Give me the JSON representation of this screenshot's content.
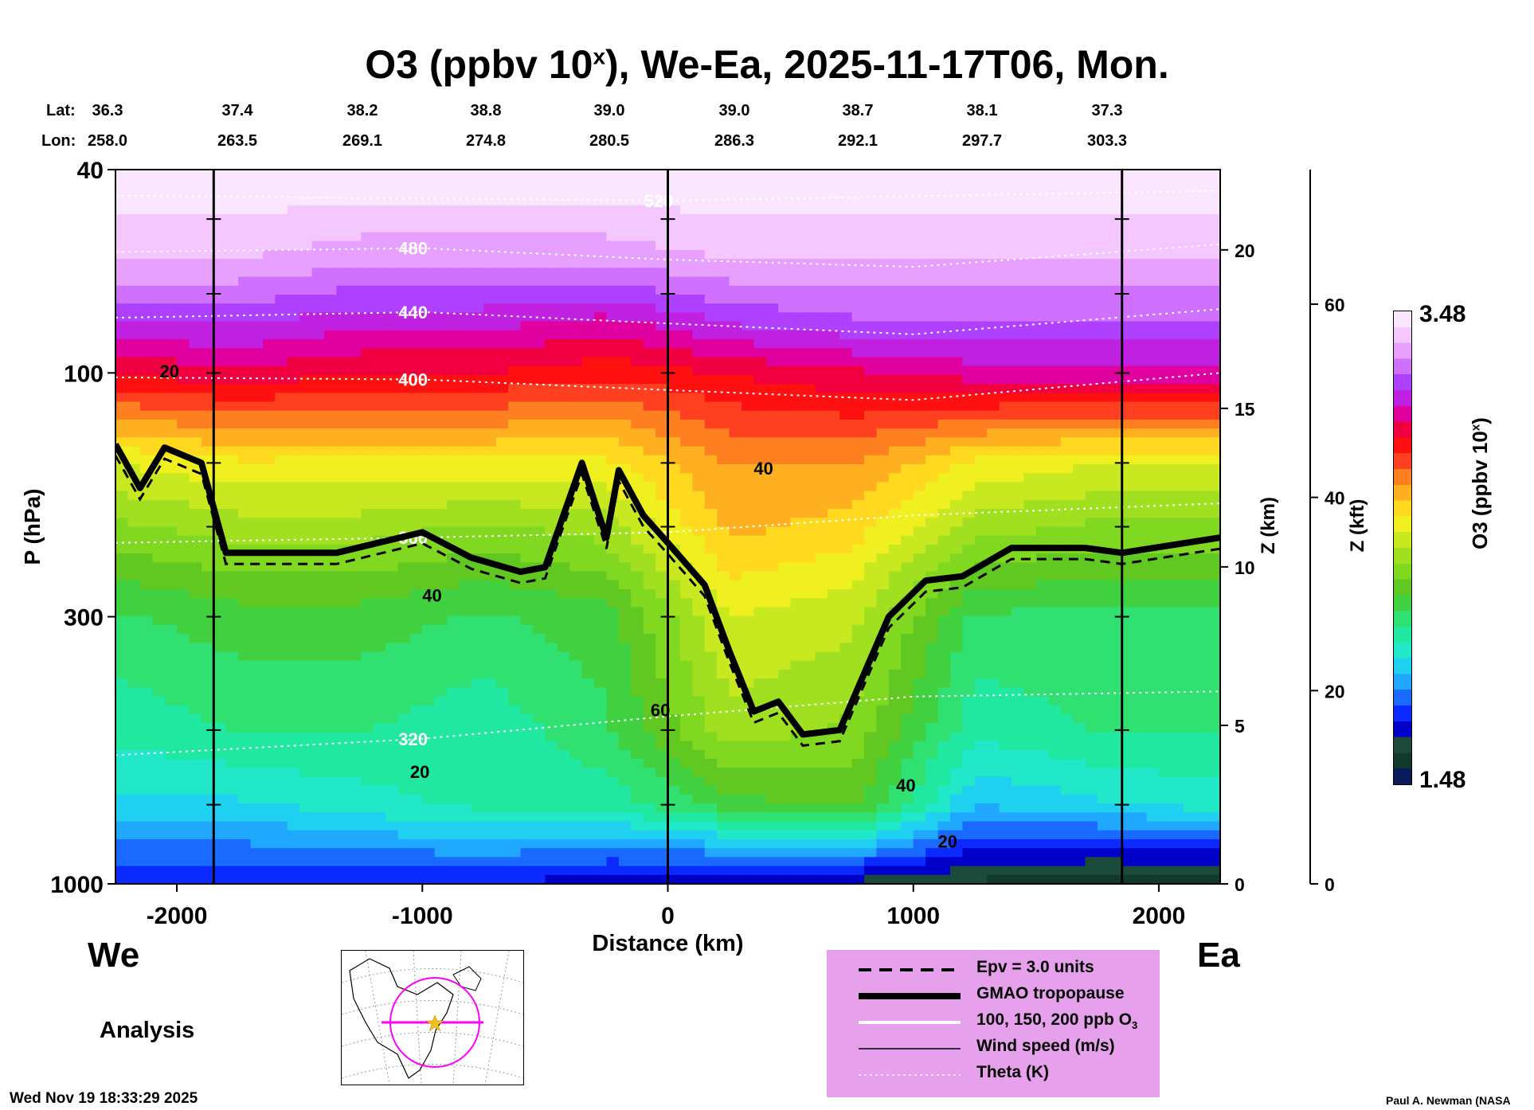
{
  "title": {
    "text": "O3 (ppbv 10",
    "sup": "x",
    "rest": "), We-Ea, 2025-11-17T06, Mon."
  },
  "lat_label": "Lat:",
  "lon_label": "Lon:",
  "lat_values": [
    "36.3",
    "37.4",
    "38.2",
    "38.8",
    "39.0",
    "39.0",
    "38.7",
    "38.1",
    "37.3"
  ],
  "lon_values": [
    "258.0",
    "263.5",
    "269.1",
    "274.8",
    "280.5",
    "286.3",
    "292.1",
    "297.7",
    "303.3"
  ],
  "direction_left": "We",
  "direction_right": "Ea",
  "analysis_label": "Analysis",
  "footer_timestamp": "Wed Nov 19 18:33:29 2025",
  "credit": "Paul A. Newman (NASA",
  "legend": {
    "items": [
      {
        "label": "Epv = 3.0 units",
        "style": "dashed-black"
      },
      {
        "label": "GMAO tropopause",
        "style": "thick-black"
      },
      {
        "label": "100, 150, 200 ppb O",
        "sub": "3",
        "style": "white"
      },
      {
        "label": "Wind speed (m/s)",
        "style": "thin-black"
      },
      {
        "label": "Theta (K)",
        "style": "dotted-white"
      }
    ],
    "background": "#e7a1ec"
  },
  "colorbar": {
    "title": "O3 (ppbv 10",
    "title_sup": "x",
    "title_end": ")",
    "max_label": "3.48",
    "min_label": "1.48",
    "max": 3.48,
    "min": 1.48,
    "colors_bottom_to_top": [
      "#0a1a5a",
      "#123a2a",
      "#1b4a3a",
      "#0000c8",
      "#0a2aff",
      "#1a6aff",
      "#20a8ff",
      "#20d0f0",
      "#20e8c8",
      "#20e8a0",
      "#30e070",
      "#40d040",
      "#60c820",
      "#80d820",
      "#a0e020",
      "#c8e820",
      "#f0f020",
      "#ffd820",
      "#ffb020",
      "#ff8020",
      "#ff4020",
      "#ff1010",
      "#f00040",
      "#e000a0",
      "#c020e0",
      "#b040ff",
      "#d070ff",
      "#e8a0ff",
      "#f4c8ff",
      "#fbe6ff"
    ]
  },
  "chart_data": {
    "type": "heatmap",
    "title": "O3 (ppbv 10^x), We-Ea, 2025-11-17T06, Mon.",
    "xlabel": "Distance (km)",
    "ylabel": "P (hPa)",
    "right_axis1_label": "Z (km)",
    "right_axis2_label": "Z (kft)",
    "colorbar_label": "O3 (ppbv 10^x)",
    "xlim": [
      -2250,
      2250
    ],
    "ylim": [
      1000,
      40
    ],
    "y_scale": "log",
    "x_ticks": [
      -2000,
      -1000,
      0,
      1000,
      2000
    ],
    "x_tick_labels": [
      "-2000",
      "-1000",
      "0",
      "1000",
      "2000"
    ],
    "y_ticks": [
      1000,
      300,
      100,
      40
    ],
    "y_tick_labels": [
      "1000",
      "300",
      "100",
      "40"
    ],
    "z_km_ticks": [
      0,
      5,
      10,
      15,
      20
    ],
    "z_km_tick_labels": [
      "0",
      "5",
      "10",
      "15",
      "20"
    ],
    "z_kft_ticks": [
      0,
      20,
      40,
      60
    ],
    "z_kft_tick_labels": [
      "0",
      "20",
      "40",
      "60"
    ],
    "vertical_section_lines_km": [
      -1850,
      0,
      1850
    ],
    "theta_levels": [
      {
        "label": "320",
        "points": [
          [
            -2250,
            560
          ],
          [
            -1000,
            520
          ],
          [
            0,
            470
          ],
          [
            1000,
            430
          ],
          [
            2250,
            420
          ]
        ]
      },
      {
        "label": "360",
        "points": [
          [
            -2250,
            215
          ],
          [
            -1000,
            210
          ],
          [
            0,
            205
          ],
          [
            1000,
            190
          ],
          [
            2250,
            180
          ]
        ]
      },
      {
        "label": "400",
        "points": [
          [
            -2250,
            102
          ],
          [
            -1000,
            103
          ],
          [
            0,
            108
          ],
          [
            1000,
            113
          ],
          [
            2250,
            100
          ]
        ]
      },
      {
        "label": "440",
        "points": [
          [
            -2250,
            78
          ],
          [
            -1000,
            76
          ],
          [
            0,
            80
          ],
          [
            1000,
            84
          ],
          [
            2250,
            75
          ]
        ]
      },
      {
        "label": "480",
        "points": [
          [
            -2250,
            58
          ],
          [
            -1000,
            57
          ],
          [
            0,
            60
          ],
          [
            1000,
            62
          ],
          [
            2250,
            56
          ]
        ]
      },
      {
        "label": "520",
        "points": [
          [
            -2250,
            45
          ],
          [
            0,
            46
          ],
          [
            2250,
            44
          ]
        ]
      }
    ],
    "tropopause_hPa": [
      [
        -2250,
        138
      ],
      [
        -2150,
        168
      ],
      [
        -2050,
        140
      ],
      [
        -1900,
        150
      ],
      [
        -1800,
        225
      ],
      [
        -1350,
        225
      ],
      [
        -1000,
        205
      ],
      [
        -800,
        230
      ],
      [
        -600,
        245
      ],
      [
        -500,
        240
      ],
      [
        -350,
        150
      ],
      [
        -250,
        210
      ],
      [
        -200,
        155
      ],
      [
        -100,
        190
      ],
      [
        0,
        215
      ],
      [
        150,
        260
      ],
      [
        250,
        350
      ],
      [
        350,
        460
      ],
      [
        450,
        440
      ],
      [
        550,
        510
      ],
      [
        700,
        500
      ],
      [
        900,
        300
      ],
      [
        1050,
        255
      ],
      [
        1200,
        250
      ],
      [
        1400,
        220
      ],
      [
        1700,
        220
      ],
      [
        1850,
        225
      ],
      [
        2250,
        210
      ]
    ],
    "wind_speed_labels": [
      {
        "label": "20",
        "x": -2070,
        "p": 102
      },
      {
        "label": "40",
        "x": 350,
        "p": 158
      },
      {
        "label": "40",
        "x": -1000,
        "p": 280
      },
      {
        "label": "60",
        "x": -70,
        "p": 470
      },
      {
        "label": "20",
        "x": -1050,
        "p": 620
      },
      {
        "label": "40",
        "x": 930,
        "p": 660
      },
      {
        "label": "20",
        "x": 1100,
        "p": 850
      }
    ],
    "o3_log10_field": [
      {
        "p": 1000,
        "values": [
          1.75,
          1.75,
          1.75,
          1.75,
          1.7,
          1.65,
          1.65,
          1.6,
          1.55,
          1.55
        ]
      },
      {
        "p": 700,
        "values": [
          2.0,
          2.0,
          2.05,
          2.1,
          2.1,
          2.25,
          2.3,
          1.95,
          2.0,
          2.05
        ]
      },
      {
        "p": 500,
        "values": [
          2.1,
          2.15,
          2.15,
          2.1,
          2.2,
          2.45,
          2.4,
          2.1,
          2.15,
          2.15
        ]
      },
      {
        "p": 300,
        "values": [
          2.2,
          2.25,
          2.25,
          2.2,
          2.25,
          2.55,
          2.5,
          2.2,
          2.2,
          2.2
        ]
      },
      {
        "p": 200,
        "values": [
          2.4,
          2.45,
          2.45,
          2.4,
          2.45,
          2.7,
          2.65,
          2.45,
          2.4,
          2.4
        ]
      },
      {
        "p": 150,
        "values": [
          2.55,
          2.6,
          2.6,
          2.6,
          2.6,
          2.75,
          2.75,
          2.6,
          2.55,
          2.55
        ]
      },
      {
        "p": 100,
        "values": [
          2.95,
          3.0,
          2.95,
          2.95,
          2.9,
          2.95,
          3.0,
          3.05,
          3.05,
          3.05
        ]
      },
      {
        "p": 80,
        "values": [
          3.15,
          3.15,
          3.1,
          3.1,
          3.05,
          3.15,
          3.2,
          3.2,
          3.2,
          3.2
        ]
      },
      {
        "p": 60,
        "values": [
          3.35,
          3.35,
          3.3,
          3.3,
          3.3,
          3.35,
          3.35,
          3.35,
          3.35,
          3.35
        ]
      },
      {
        "p": 40,
        "values": [
          3.48,
          3.48,
          3.48,
          3.48,
          3.48,
          3.48,
          3.48,
          3.48,
          3.48,
          3.48
        ]
      }
    ],
    "o3_field_x": [
      -2250,
      -1750,
      -1250,
      -750,
      -250,
      250,
      750,
      1250,
      1750,
      2250
    ],
    "o3_white_contours_ppb": [
      100,
      150,
      200
    ],
    "inset_map_label": "We-Ea cross section line through center (~39N, 280.5E)"
  }
}
